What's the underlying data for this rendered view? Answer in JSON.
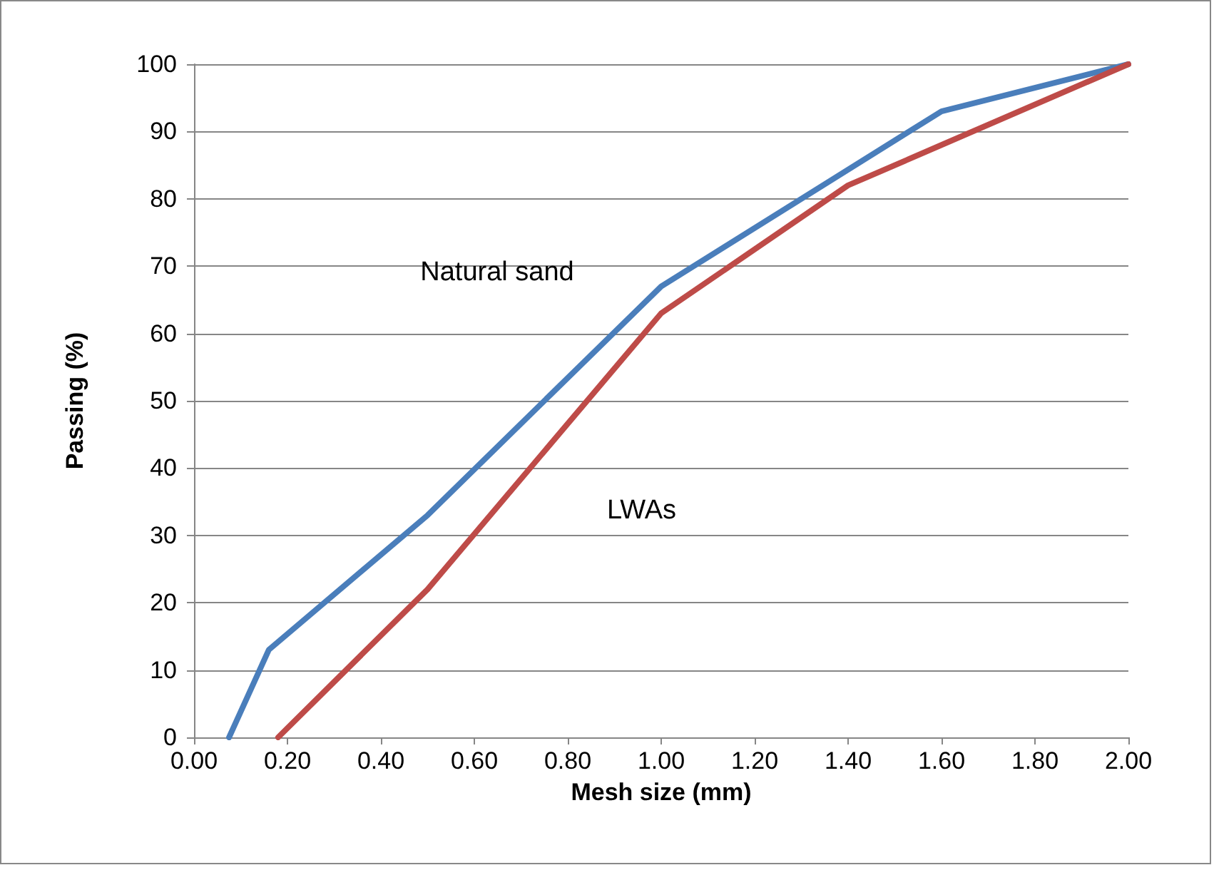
{
  "chart_data": {
    "type": "line",
    "xlabel": "Mesh size (mm)",
    "ylabel": "Passing (%)",
    "series": [
      {
        "name": "Natural sand",
        "color": "#4a7ebb",
        "x": [
          0.075,
          0.16,
          0.5,
          1.0,
          1.6,
          2.0
        ],
        "values": [
          0,
          13,
          33,
          67,
          93,
          100
        ]
      },
      {
        "name": "LWAs",
        "color": "#be4b48",
        "x": [
          0.18,
          0.5,
          1.0,
          1.4,
          1.6,
          2.0
        ],
        "values": [
          0,
          22,
          63,
          82,
          88,
          100
        ]
      }
    ],
    "xlim": [
      0,
      2
    ],
    "xticks": [
      {
        "value": 0,
        "label": "0.00"
      },
      {
        "value": 0.2,
        "label": "0.20"
      },
      {
        "value": 0.4,
        "label": "0.40"
      },
      {
        "value": 0.6,
        "label": "0.60"
      },
      {
        "value": 0.8,
        "label": "0.80"
      },
      {
        "value": 1,
        "label": "1.00"
      },
      {
        "value": 1.2,
        "label": "1.20"
      },
      {
        "value": 1.4,
        "label": "1.40"
      },
      {
        "value": 1.6,
        "label": "1.60"
      },
      {
        "value": 1.8,
        "label": "1.80"
      },
      {
        "value": 2,
        "label": "2.00"
      }
    ],
    "ylim": [
      0,
      100
    ],
    "yticks": [
      0,
      10,
      20,
      30,
      40,
      50,
      60,
      70,
      80,
      90,
      100
    ],
    "grid": "y",
    "legend": false,
    "marker": "none",
    "line_style": "solid"
  }
}
